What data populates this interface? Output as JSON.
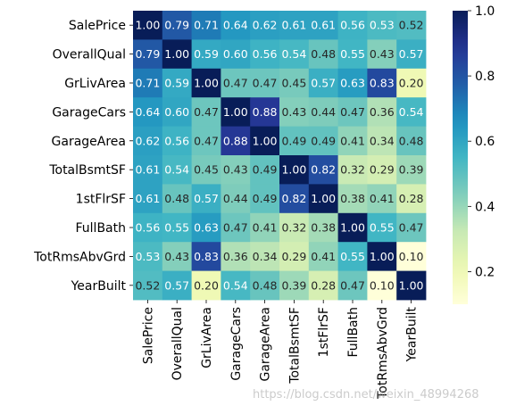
{
  "chart_data": {
    "type": "heatmap",
    "title": "",
    "xlabel": "",
    "ylabel": "",
    "labels": [
      "SalePrice",
      "OverallQual",
      "GrLivArea",
      "GarageCars",
      "GarageArea",
      "TotalBsmtSF",
      "1stFlrSF",
      "FullBath",
      "TotRmsAbvGrd",
      "YearBuilt"
    ],
    "values": [
      [
        1.0,
        0.79,
        0.71,
        0.64,
        0.62,
        0.61,
        0.61,
        0.56,
        0.53,
        0.52
      ],
      [
        0.79,
        1.0,
        0.59,
        0.6,
        0.56,
        0.54,
        0.48,
        0.55,
        0.43,
        0.57
      ],
      [
        0.71,
        0.59,
        1.0,
        0.47,
        0.47,
        0.45,
        0.57,
        0.63,
        0.83,
        0.2
      ],
      [
        0.64,
        0.6,
        0.47,
        1.0,
        0.88,
        0.43,
        0.44,
        0.47,
        0.36,
        0.54
      ],
      [
        0.62,
        0.56,
        0.47,
        0.88,
        1.0,
        0.49,
        0.49,
        0.41,
        0.34,
        0.48
      ],
      [
        0.61,
        0.54,
        0.45,
        0.43,
        0.49,
        1.0,
        0.82,
        0.32,
        0.29,
        0.39
      ],
      [
        0.61,
        0.48,
        0.57,
        0.44,
        0.49,
        0.82,
        1.0,
        0.38,
        0.41,
        0.28
      ],
      [
        0.56,
        0.55,
        0.63,
        0.47,
        0.41,
        0.32,
        0.38,
        1.0,
        0.55,
        0.47
      ],
      [
        0.53,
        0.43,
        0.83,
        0.36,
        0.34,
        0.29,
        0.41,
        0.55,
        1.0,
        0.1
      ],
      [
        0.52,
        0.57,
        0.2,
        0.54,
        0.48,
        0.39,
        0.28,
        0.47,
        0.1,
        1.0
      ]
    ],
    "value_format": "2 decimals",
    "colormap": "YlGnBu",
    "vmin": 0.1,
    "vmax": 1.0,
    "colorbar_ticks": [
      0.2,
      0.4,
      0.6,
      0.8,
      1.0
    ],
    "colorbar_tick_labels": [
      "0.2",
      "0.4",
      "0.6",
      "0.8",
      "1.0"
    ],
    "colorbar_position": "right",
    "grid": false,
    "xtick_rotation": "vertical"
  },
  "watermark": "https://blog.csdn.net/weixin_48994268"
}
